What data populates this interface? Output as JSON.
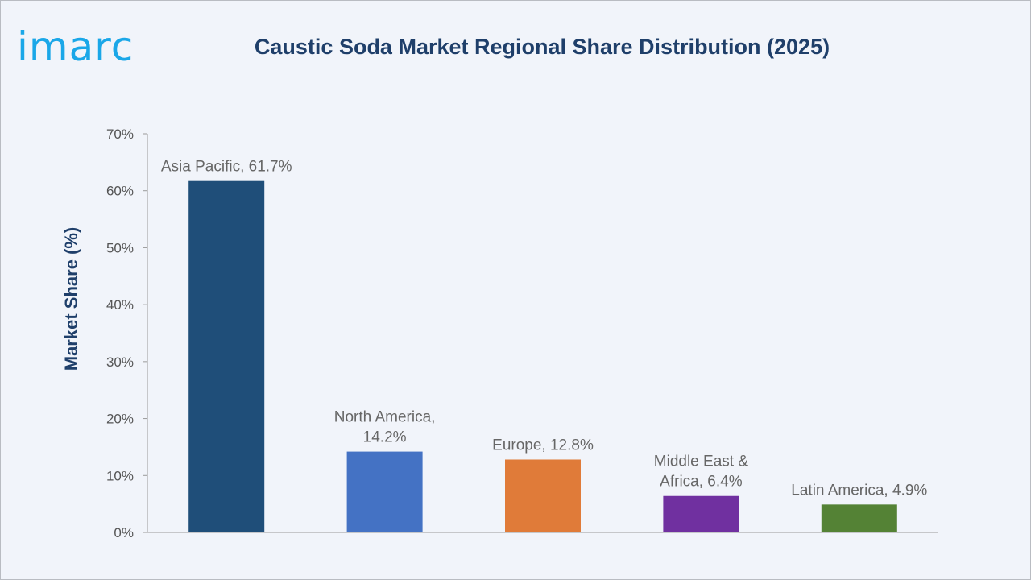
{
  "brand": {
    "logo_text": "imarc"
  },
  "chart_data": {
    "type": "bar",
    "title": "Caustic Soda Market Regional Share Distribution (2025)",
    "ylabel": "Market Share (%)",
    "xlabel": "",
    "ylim": [
      0,
      70
    ],
    "yticks": [
      "0%",
      "10%",
      "20%",
      "30%",
      "40%",
      "50%",
      "60%",
      "70%"
    ],
    "grid": false,
    "categories": [
      "Asia Pacific",
      "North America",
      "Europe",
      "Middle East & Africa",
      "Latin America"
    ],
    "values": [
      61.7,
      14.2,
      12.8,
      6.4,
      4.9
    ],
    "bar_colors": [
      "#1f4e79",
      "#4472c4",
      "#e07b39",
      "#7030a0",
      "#548235"
    ],
    "data_labels": [
      [
        "Asia Pacific, 61.7%"
      ],
      [
        "North America,",
        "14.2%"
      ],
      [
        "Europe, 12.8%"
      ],
      [
        "Middle East &",
        "Africa, 6.4%"
      ],
      [
        "Latin America, 4.9%"
      ]
    ]
  }
}
